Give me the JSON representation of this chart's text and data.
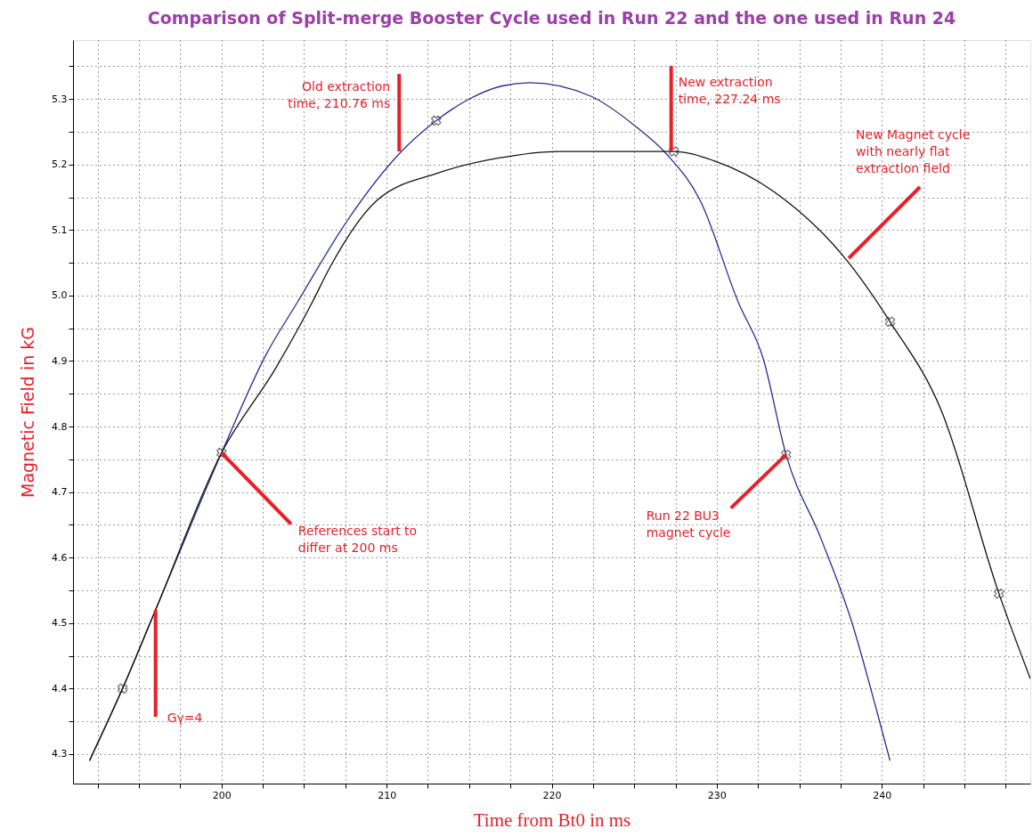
{
  "chart_data": {
    "type": "line",
    "title": "Comparison of Split-merge Booster Cycle used in Run 22 and the one used in Run 24",
    "xlabel": "Time from Bt0 in ms",
    "ylabel": "Magnetic Field in kG",
    "xlim": [
      191,
      249
    ],
    "ylim": [
      4.255,
      5.39
    ],
    "xticks": [
      {
        "value": 192.5,
        "label": null
      },
      {
        "value": 195,
        "label": null
      },
      {
        "value": 197.5,
        "label": null
      },
      200,
      {
        "value": 202.5,
        "label": null
      },
      {
        "value": 205,
        "label": null
      },
      {
        "value": 207.5,
        "label": null
      },
      210,
      {
        "value": 212.5,
        "label": null
      },
      {
        "value": 215,
        "label": null
      },
      {
        "value": 217.5,
        "label": null
      },
      220,
      {
        "value": 222.5,
        "label": null
      },
      {
        "value": 225,
        "label": null
      },
      {
        "value": 227.5,
        "label": null
      },
      230,
      {
        "value": 232.5,
        "label": null
      },
      {
        "value": 235,
        "label": null
      },
      {
        "value": 237.5,
        "label": null
      },
      240,
      {
        "value": 242.5,
        "label": null
      },
      {
        "value": 245,
        "label": null
      },
      {
        "value": 247.5,
        "label": null
      }
    ],
    "yticks": [
      4.3,
      {
        "value": 4.35,
        "label": null
      },
      4.4,
      {
        "value": 4.45,
        "label": null
      },
      4.5,
      {
        "value": 4.55,
        "label": null
      },
      4.6,
      {
        "value": 4.65,
        "label": null
      },
      4.7,
      {
        "value": 4.75,
        "label": null
      },
      4.8,
      {
        "value": 4.85,
        "label": null
      },
      4.9,
      {
        "value": 4.95,
        "label": null
      },
      {
        "value": 5.0,
        "label": "5.0"
      },
      {
        "value": 5.05,
        "label": null
      },
      5.1,
      {
        "value": 5.15,
        "label": null
      },
      5.2,
      {
        "value": 5.25,
        "label": null
      },
      5.3,
      {
        "value": 5.35,
        "label": null
      }
    ],
    "grid": true,
    "marker": "none",
    "line_style": "solid",
    "series": [
      {
        "color": "#2b2b94",
        "x": [
          192.0,
          194.0,
          196.0,
          200.0,
          202.7,
          204.6,
          207.5,
          210.9,
          213.0,
          215.0,
          217.0,
          218.7,
          222.4,
          225.0,
          227.0,
          229.0,
          231.3,
          232.8,
          234.2,
          236.3,
          238.2,
          239.6,
          240.5
        ],
        "values": [
          4.29,
          4.4,
          4.52,
          4.76,
          4.91,
          4.99,
          5.11,
          5.22,
          5.267,
          5.3,
          5.32,
          5.325,
          5.304,
          5.26,
          5.215,
          5.145,
          4.99,
          4.905,
          4.757,
          4.63,
          4.5,
          4.375,
          4.29
        ]
      },
      {
        "color": "#111111",
        "x": [
          192.0,
          194.0,
          196.0,
          200.0,
          203.3,
          205.5,
          206.5,
          209.4,
          213.1,
          216.8,
          220.5,
          227.4,
          229.8,
          233.5,
          238.0,
          240.5,
          243.6,
          247.1,
          249.0
        ],
        "values": [
          4.29,
          4.4,
          4.52,
          4.76,
          4.89,
          4.99,
          5.04,
          5.145,
          5.187,
          5.21,
          5.22,
          5.22,
          5.206,
          5.158,
          5.05,
          4.96,
          4.825,
          4.545,
          4.415
        ]
      },
      {
        "type": "scatter",
        "color": "#333333",
        "marker": "cross",
        "x": [
          194.0,
          200.0,
          213.0,
          227.4,
          234.2,
          240.5,
          247.1
        ],
        "values": [
          4.4,
          4.76,
          5.267,
          5.22,
          4.757,
          4.96,
          4.545
        ]
      }
    ],
    "annotations": [
      {
        "text": "Old extraction time, 210.76 ms",
        "x": 210.76,
        "y": 5.22
      },
      {
        "text": "New extraction time, 227.24 ms",
        "x": 227.24,
        "y": 5.22
      },
      {
        "text": "New Magnet cycle with nearly flat extraction field",
        "x": 238.0,
        "y": 5.057
      },
      {
        "text": "References start to differ at 200 ms",
        "x": 200.0,
        "y": 4.76
      },
      {
        "text": "Run 22 BU3 magnet cycle",
        "x": 234.2,
        "y": 4.757
      },
      {
        "text": "Gγ=4",
        "x": 196.0,
        "y": 4.52
      }
    ]
  }
}
